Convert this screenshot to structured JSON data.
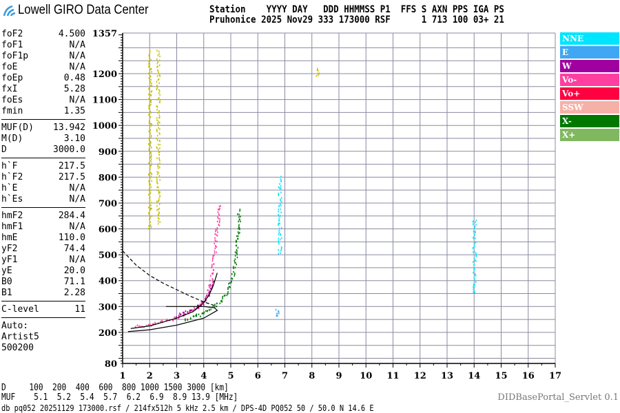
{
  "logo": {
    "text": "Lowell GIRO Data Center"
  },
  "header": {
    "line1": "Station    YYYY DAY   DDD HHMMSS P1  FFS S AXN PPS IGA PS",
    "line2": "Pruhonice 2025 Nov29 333 173000 RSF      1 713 100 03+ 21"
  },
  "params": {
    "group1": [
      {
        "name": "foF2",
        "value": "4.500"
      },
      {
        "name": "foF1",
        "value": "N/A"
      },
      {
        "name": "foF1p",
        "value": "N/A"
      },
      {
        "name": "foE",
        "value": "N/A"
      },
      {
        "name": "foEp",
        "value": "0.48"
      },
      {
        "name": "fxI",
        "value": "5.28"
      },
      {
        "name": "foEs",
        "value": "N/A"
      },
      {
        "name": "fmin",
        "value": "1.35"
      }
    ],
    "group2": [
      {
        "name": "MUF(D)",
        "value": "13.942"
      },
      {
        "name": "M(D)",
        "value": "3.10"
      },
      {
        "name": "D",
        "value": "3000.0"
      }
    ],
    "group3": [
      {
        "name": "h`F",
        "value": "217.5"
      },
      {
        "name": "h`F2",
        "value": "217.5"
      },
      {
        "name": "h`E",
        "value": "N/A"
      },
      {
        "name": "h`Es",
        "value": "N/A"
      }
    ],
    "group4": [
      {
        "name": "hmF2",
        "value": "284.4"
      },
      {
        "name": "hmF1",
        "value": "N/A"
      },
      {
        "name": "hmE",
        "value": "110.0"
      },
      {
        "name": "yF2",
        "value": "74.4"
      },
      {
        "name": "yF1",
        "value": "N/A"
      },
      {
        "name": "yE",
        "value": "20.0"
      },
      {
        "name": "B0",
        "value": "71.1"
      },
      {
        "name": "B1",
        "value": "2.28"
      }
    ],
    "group5": [
      {
        "name": "C-level",
        "value": "11"
      }
    ],
    "auto": [
      "Auto:",
      "Artist5",
      "500200"
    ]
  },
  "legend": [
    {
      "label": "NNE",
      "color": "#00e5ff"
    },
    {
      "label": "E",
      "color": "#3fa7f3"
    },
    {
      "label": "W",
      "color": "#a0009f"
    },
    {
      "label": "Vo-",
      "color": "#ff3fa0"
    },
    {
      "label": "Vo+",
      "color": "#ff0040"
    },
    {
      "label": "SSW",
      "color": "#f5b1a8"
    },
    {
      "label": "X-",
      "color": "#007800"
    },
    {
      "label": "X+",
      "color": "#80b860"
    }
  ],
  "bottom": {
    "d_row": "D     100  200  400  600  800 1000 1500 3000 [km]",
    "muf_row": "MUF    5.1  5.2  5.4  5.7  6.2  6.9  8.9 13.9 [MHz]",
    "footer": "db pq052 20251129 173000.rsf / 214fx512h 5 kHz 2.5 km / DPS-4D PQ052 50 / 50.0 N 14.6 E",
    "servlet": "DIDBasePortal_Servlet 0.1"
  },
  "chart_data": {
    "type": "scatter",
    "xlim": [
      1,
      17
    ],
    "ylim": [
      80,
      1357
    ],
    "x_ticks": [
      1,
      2,
      3,
      4,
      5,
      6,
      7,
      8,
      9,
      10,
      11,
      12,
      13,
      14,
      15,
      16,
      17
    ],
    "y_ticks": [
      80,
      200,
      300,
      400,
      500,
      600,
      700,
      800,
      900,
      1000,
      1100,
      1200,
      1357
    ],
    "grid": true,
    "traces": [
      {
        "color": "#007800",
        "points": [
          [
            3.3,
            250
          ],
          [
            3.8,
            270
          ],
          [
            4.2,
            290
          ],
          [
            4.6,
            320
          ],
          [
            4.9,
            370
          ],
          [
            5.1,
            430
          ],
          [
            5.2,
            500
          ],
          [
            5.25,
            580
          ],
          [
            5.3,
            680
          ]
        ]
      },
      {
        "color": "#ff3fa0",
        "points": [
          [
            1.5,
            225
          ],
          [
            2.0,
            230
          ],
          [
            2.5,
            245
          ],
          [
            3.0,
            260
          ],
          [
            3.5,
            285
          ],
          [
            3.9,
            310
          ],
          [
            4.15,
            350
          ],
          [
            4.3,
            420
          ],
          [
            4.4,
            520
          ],
          [
            4.5,
            620
          ],
          [
            4.6,
            700
          ]
        ]
      },
      {
        "color": "#a0009f",
        "points": [
          [
            3.0,
            265
          ],
          [
            3.6,
            290
          ],
          [
            4.0,
            320
          ],
          [
            4.2,
            360
          ],
          [
            4.3,
            400
          ]
        ]
      },
      {
        "color": "#c8c000",
        "points": [
          [
            2.0,
            1290
          ],
          [
            2.0,
            600
          ]
        ]
      },
      {
        "color": "#c8c000",
        "points": [
          [
            2.3,
            1290
          ],
          [
            2.3,
            620
          ]
        ]
      },
      {
        "color": "#00e5ff",
        "points": [
          [
            6.8,
            800
          ],
          [
            6.8,
            500
          ]
        ]
      },
      {
        "color": "#00e5ff",
        "points": [
          [
            14.0,
            640
          ],
          [
            14.0,
            350
          ]
        ]
      },
      {
        "color": "#3fa7f3",
        "points": [
          [
            6.7,
            290
          ],
          [
            6.7,
            260
          ]
        ]
      },
      {
        "color": "#c8c000",
        "points": [
          [
            8.2,
            1220
          ],
          [
            8.2,
            1190
          ]
        ]
      }
    ],
    "profile_curves": [
      {
        "style": "solid",
        "points": [
          [
            1.3,
            215
          ],
          [
            2,
            225
          ],
          [
            3,
            255
          ],
          [
            3.6,
            280
          ],
          [
            4.0,
            315
          ],
          [
            4.2,
            345
          ],
          [
            4.35,
            380
          ],
          [
            4.5,
            430
          ]
        ]
      },
      {
        "style": "solid",
        "points": [
          [
            1.2,
            203
          ],
          [
            2,
            210
          ],
          [
            3,
            228
          ],
          [
            4,
            255
          ],
          [
            4.5,
            285
          ],
          [
            4.4,
            295
          ],
          [
            4.0,
            300
          ],
          [
            3.2,
            300
          ],
          [
            2.6,
            300
          ]
        ]
      },
      {
        "style": "dashed",
        "points": [
          [
            1.0,
            515
          ],
          [
            1.5,
            460
          ],
          [
            2.0,
            420
          ],
          [
            2.5,
            390
          ],
          [
            3.0,
            365
          ],
          [
            3.5,
            340
          ],
          [
            4.0,
            318
          ],
          [
            4.5,
            300
          ]
        ]
      }
    ]
  }
}
